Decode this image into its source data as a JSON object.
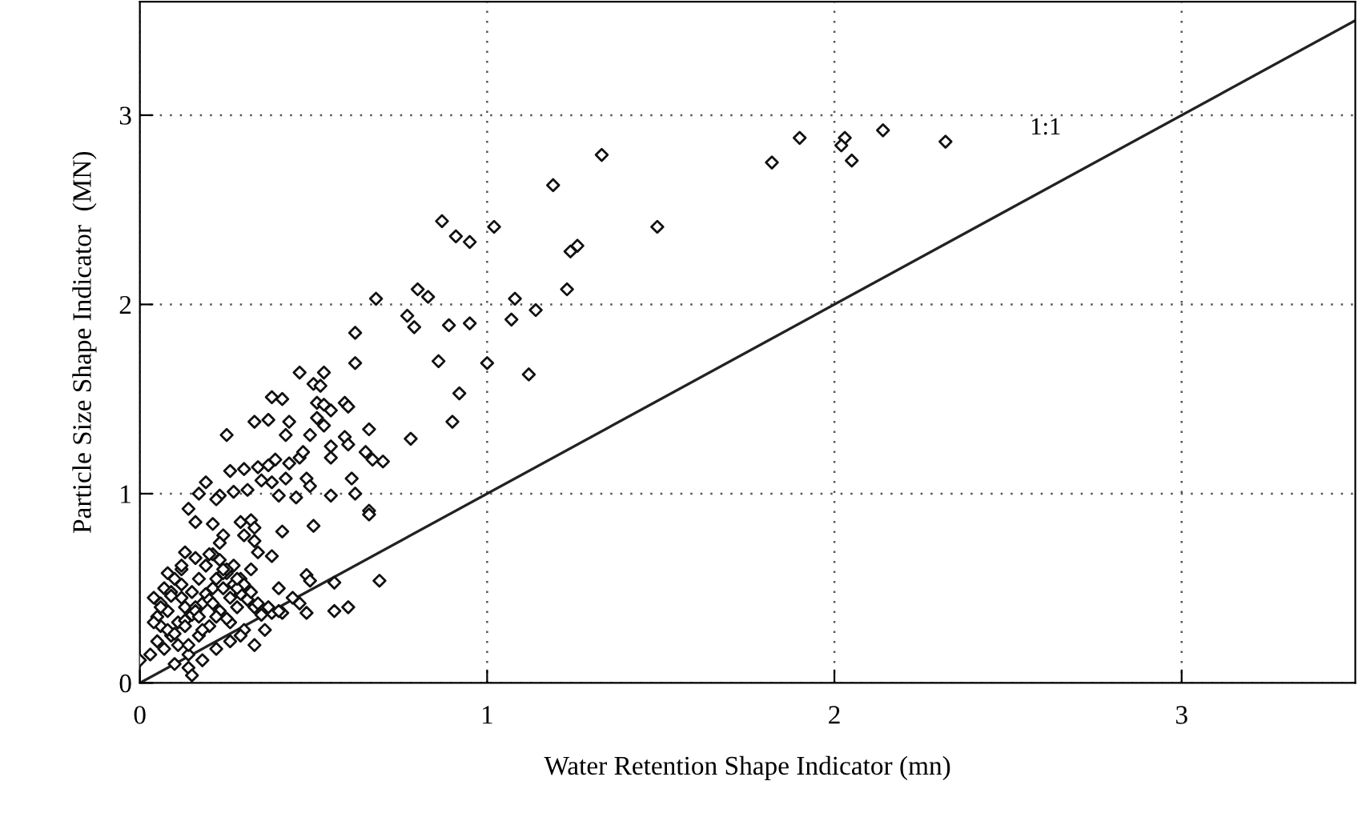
{
  "chart_data": {
    "type": "scatter",
    "xlabel": "Water Retention Shape Indicator (mn)",
    "ylabel": "Particle Size Shape Indicator  (MN)",
    "xlim": [
      0,
      3.5
    ],
    "ylim": [
      0,
      3.6
    ],
    "xticks": [
      0,
      1,
      2,
      3
    ],
    "yticks": [
      0,
      1,
      2,
      3
    ],
    "grid": true,
    "series": [
      {
        "marker": "diamond",
        "color": "#111111",
        "x": [
          2.32,
          2.14,
          2.03,
          2.02,
          2.05,
          1.9,
          1.82,
          1.49,
          1.33,
          1.19,
          1.26,
          1.24,
          1.23,
          1.08,
          1.14,
          1.07,
          1.12,
          1.02,
          1.0,
          0.87,
          0.91,
          0.95,
          0.8,
          0.83,
          0.68,
          0.77,
          0.79,
          0.89,
          0.95,
          0.86,
          0.62,
          0.62,
          0.92,
          0.9,
          0.78,
          0.66,
          0.46,
          0.53,
          0.5,
          0.52,
          0.51,
          0.53,
          0.55,
          0.59,
          0.6,
          0.51,
          0.53,
          0.49,
          0.59,
          0.6,
          0.65,
          0.7,
          0.55,
          0.38,
          0.41,
          0.33,
          0.37,
          0.25,
          0.43,
          0.42,
          0.26,
          0.3,
          0.34,
          0.37,
          0.39,
          0.43,
          0.46,
          0.47,
          0.55,
          0.67,
          0.48,
          0.49,
          0.42,
          0.38,
          0.35,
          0.31,
          0.27,
          0.23,
          0.19,
          0.17,
          0.4,
          0.45,
          0.55,
          0.61,
          0.62,
          0.66,
          0.66,
          0.14,
          0.16,
          0.22,
          0.21,
          0.29,
          0.32,
          0.33,
          0.3,
          0.41,
          0.5,
          0.24,
          0.23,
          0.33,
          0.34,
          0.38,
          0.13,
          0.4,
          0.48,
          0.49,
          0.56,
          0.46,
          0.48,
          0.41,
          0.38,
          0.0,
          0.14,
          0.15,
          0.69,
          0.6,
          0.56,
          0.03,
          0.05,
          0.06,
          0.08,
          0.04,
          0.07,
          0.1,
          0.12,
          0.09,
          0.11,
          0.13,
          0.15,
          0.17,
          0.19,
          0.21,
          0.23,
          0.25,
          0.27,
          0.29,
          0.31,
          0.33,
          0.35,
          0.05,
          0.08,
          0.11,
          0.14,
          0.17,
          0.2,
          0.23,
          0.26,
          0.29,
          0.32,
          0.06,
          0.09,
          0.12,
          0.15,
          0.18,
          0.21,
          0.24,
          0.27,
          0.3,
          0.07,
          0.1,
          0.13,
          0.16,
          0.19,
          0.22,
          0.25,
          0.28,
          0.31,
          0.34,
          0.37,
          0.08,
          0.12,
          0.16,
          0.2,
          0.24,
          0.28,
          0.32,
          0.1,
          0.14,
          0.18,
          0.22,
          0.26,
          0.3,
          0.12,
          0.16,
          0.2,
          0.24,
          0.28,
          0.18,
          0.22,
          0.26,
          0.04,
          0.06,
          0.09,
          0.13,
          0.17,
          0.21,
          0.25,
          0.29,
          0.33,
          0.36,
          0.4,
          0.44
        ],
        "values": [
          2.86,
          2.92,
          2.88,
          2.84,
          2.76,
          2.88,
          2.75,
          2.41,
          2.79,
          2.63,
          2.31,
          2.28,
          2.08,
          2.03,
          1.97,
          1.92,
          1.63,
          2.41,
          1.69,
          2.44,
          2.36,
          2.33,
          2.08,
          2.04,
          2.03,
          1.94,
          1.88,
          1.89,
          1.9,
          1.7,
          1.85,
          1.69,
          1.53,
          1.38,
          1.29,
          1.34,
          1.64,
          1.64,
          1.58,
          1.57,
          1.48,
          1.47,
          1.44,
          1.48,
          1.46,
          1.4,
          1.36,
          1.31,
          1.3,
          1.26,
          1.22,
          1.17,
          1.25,
          1.51,
          1.5,
          1.38,
          1.39,
          1.31,
          1.38,
          1.31,
          1.12,
          1.13,
          1.14,
          1.15,
          1.18,
          1.16,
          1.19,
          1.22,
          1.19,
          1.18,
          1.08,
          1.04,
          1.08,
          1.06,
          1.07,
          1.02,
          1.01,
          0.99,
          1.06,
          1.0,
          0.99,
          0.98,
          0.99,
          1.08,
          1.0,
          0.91,
          0.89,
          0.92,
          0.85,
          0.97,
          0.84,
          0.85,
          0.86,
          0.82,
          0.78,
          0.8,
          0.83,
          0.78,
          0.74,
          0.75,
          0.69,
          0.67,
          0.69,
          0.5,
          0.57,
          0.54,
          0.53,
          0.42,
          0.37,
          0.37,
          0.37,
          0.12,
          0.08,
          0.04,
          0.54,
          0.4,
          0.38,
          0.15,
          0.22,
          0.3,
          0.38,
          0.45,
          0.5,
          0.55,
          0.6,
          0.25,
          0.32,
          0.4,
          0.48,
          0.55,
          0.62,
          0.68,
          0.65,
          0.58,
          0.52,
          0.47,
          0.44,
          0.4,
          0.36,
          0.35,
          0.28,
          0.2,
          0.15,
          0.25,
          0.3,
          0.38,
          0.45,
          0.55,
          0.6,
          0.42,
          0.48,
          0.52,
          0.36,
          0.42,
          0.5,
          0.58,
          0.62,
          0.52,
          0.18,
          0.26,
          0.33,
          0.4,
          0.47,
          0.55,
          0.6,
          0.5,
          0.44,
          0.42,
          0.4,
          0.58,
          0.62,
          0.66,
          0.68,
          0.6,
          0.55,
          0.48,
          0.1,
          0.2,
          0.28,
          0.35,
          0.32,
          0.28,
          0.45,
          0.38,
          0.44,
          0.5,
          0.4,
          0.12,
          0.18,
          0.22,
          0.32,
          0.4,
          0.46,
          0.3,
          0.35,
          0.42,
          0.34,
          0.25,
          0.2,
          0.28,
          0.38,
          0.45
        ]
      },
      {
        "type": "line",
        "marker": "none",
        "name": "1:1",
        "color": "#222222",
        "x": [
          0,
          3.5
        ],
        "values": [
          0,
          3.5
        ]
      }
    ]
  }
}
